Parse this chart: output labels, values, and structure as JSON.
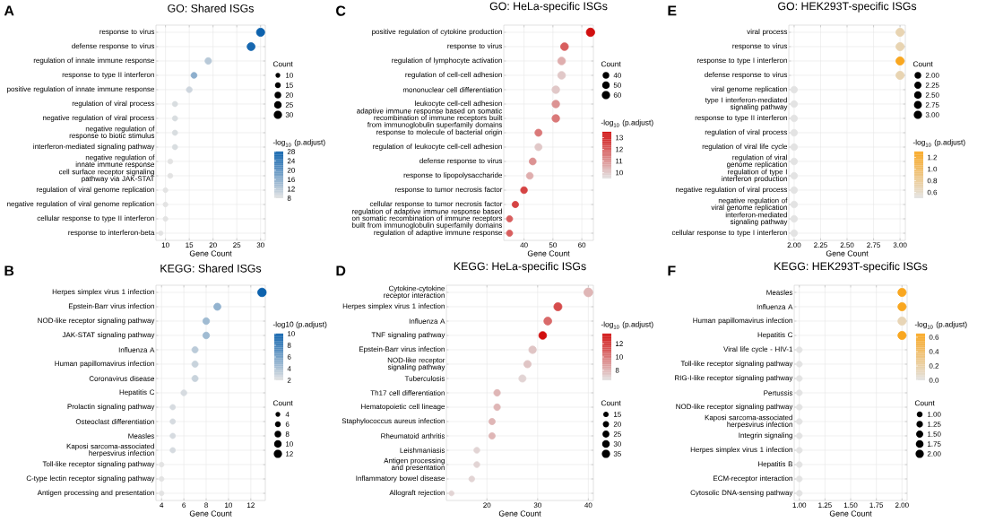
{
  "chart_data": [
    {
      "type": "bubble",
      "orientation": "horizontal",
      "title": "GO: Shared ISGs",
      "xlabel": "Gene Count",
      "legend_title": "Count",
      "clabel": "-log$_{10}$ (p.adjust)",
      "annotations": [
        "A"
      ],
      "grid": true,
      "categories": [
        "response to virus",
        "defense response to virus",
        "regulation of innate immune response",
        "response to type II interferon",
        "positive regulation of innate immune response",
        "regulation of viral process",
        "negative regulation of viral process",
        "negative regulation of response to biotic stimulus",
        "interferon-mediated signaling pathway",
        "negative regulation of innate immune response",
        "cell surface receptor signaling pathway via JAK-STAT",
        "regulation of viral genome replication",
        "negative regulation of viral genome replication",
        "cellular response to type II interferon",
        "response to interferon-beta"
      ],
      "series": [
        {
          "values": [
            30,
            28,
            19,
            16,
            15,
            12,
            12,
            12,
            12,
            11,
            11,
            10,
            10,
            10,
            9
          ],
          "sizes": [
            30,
            28,
            19,
            16,
            15,
            12,
            12,
            12,
            12,
            11,
            11,
            10,
            10,
            10,
            9
          ],
          "cvalues": [
            28,
            27,
            12,
            16,
            10,
            9,
            9,
            9,
            9,
            8,
            8,
            8,
            8,
            8,
            8
          ]
        }
      ],
      "xlim": [
        8,
        31
      ],
      "xticks": [
        10,
        15,
        20,
        25,
        30
      ],
      "clim": [
        8,
        28
      ],
      "cticks": [
        8,
        12,
        16,
        20,
        24,
        28
      ],
      "size_legend": [
        10,
        15,
        20,
        25,
        30
      ]
    },
    {
      "type": "bubble",
      "orientation": "horizontal",
      "title": "KEGG: Shared ISGs",
      "xlabel": "Gene Count",
      "legend_title": "Count",
      "clabel": "-log10 (p.adjust)",
      "annotations": [
        "B"
      ],
      "grid": true,
      "categories": [
        "Herpes simplex virus 1 infection",
        "Epstein-Barr virus infection",
        "NOD-like receptor signaling pathway",
        "JAK-STAT signaling pathway",
        "Influenza A",
        "Human papillomavirus infection",
        "Coronavirus disease",
        "Hepatitis C",
        "Prolactin signaling pathway",
        "Osteoclast differentiation",
        "Measles",
        "Kaposi sarcoma-associated herpesvirus infection",
        "Toll-like receptor signaling pathway",
        "C-type lectin receptor signaling pathway",
        "Antigen processing and presentation"
      ],
      "series": [
        {
          "values": [
            13,
            9,
            8,
            8,
            7,
            7,
            7,
            6,
            5,
            5,
            5,
            5,
            4,
            4,
            4
          ],
          "sizes": [
            13,
            9,
            8,
            8,
            7,
            7,
            7,
            6,
            5,
            5,
            5,
            5,
            4,
            4,
            4
          ],
          "cvalues": [
            10,
            5,
            4.5,
            4.5,
            3.5,
            3,
            3,
            2.5,
            2.5,
            2.5,
            2.5,
            2.5,
            2,
            2,
            2
          ]
        }
      ],
      "xlim": [
        3.5,
        13.3
      ],
      "xticks": [
        4,
        6,
        8,
        10,
        12
      ],
      "clim": [
        2,
        10
      ],
      "cticks": [
        2,
        4,
        6,
        8,
        10
      ],
      "size_legend": [
        4,
        6,
        8,
        10,
        12
      ]
    },
    {
      "type": "bubble",
      "orientation": "horizontal",
      "title": "GO: HeLa-specific ISGs",
      "xlabel": "Gene Count",
      "legend_title": "Count",
      "clabel": "-log$_{10}$ (p.adjust)",
      "annotations": [
        "C"
      ],
      "grid": true,
      "categories": [
        "positive regulation of cytokine production",
        "response to virus",
        "regulation of lymphocyte activation",
        "regulation of cell-cell adhesion",
        "mononuclear cell differentiation",
        "leukocyte cell-cell adhesion",
        "adaptive immune response based on somatic recombination of immune receptors built from immunoglobulin superfamily domains",
        "response to molecule of bacterial origin",
        "regulation of leukocyte cell-cell adhesion",
        "defense response to virus",
        "response to lipopolysaccharide",
        "response to tumor necrosis factor",
        "cellular response to tumor necrosis factor",
        "regulation of adaptive immune response based on somatic recombination of immune receptors built from immunoglobulin superfamily domains",
        "regulation of adaptive immune response"
      ],
      "series": [
        {
          "values": [
            63,
            54,
            53,
            53,
            51,
            51,
            51,
            45,
            45,
            43,
            42,
            40,
            37,
            35,
            35
          ],
          "sizes": [
            63,
            54,
            53,
            53,
            51,
            51,
            51,
            45,
            45,
            43,
            42,
            40,
            37,
            35,
            35
          ],
          "cvalues": [
            13.5,
            12,
            10.5,
            10,
            10,
            11,
            11.5,
            11.5,
            10,
            11,
            10.5,
            12.5,
            12.5,
            12,
            12
          ]
        }
      ],
      "xlim": [
        33,
        64
      ],
      "xticks": [
        40,
        50,
        60
      ],
      "clim": [
        9.5,
        13.5
      ],
      "cticks": [
        10,
        11,
        12,
        13
      ],
      "size_legend": [
        40,
        50,
        60
      ]
    },
    {
      "type": "bubble",
      "orientation": "horizontal",
      "title": "KEGG: HeLa-specific ISGs",
      "xlabel": "Gene Count",
      "legend_title": "Count",
      "clabel": "-log$_{10}$ (p.adjust)",
      "annotations": [
        "D"
      ],
      "grid": true,
      "categories": [
        "Cytokine-cytokine receptor interaction",
        "Herpes simplex virus 1 infection",
        "Influenza A",
        "TNF signaling pathway",
        "Epstein-Barr virus infection",
        "NOD-like receptor signaling pathway",
        "Tuberculosis",
        "Th17 cell differentiation",
        "Hematopoietic cell lineage",
        "Staphylococcus aureus infection",
        "Rheumatoid arthritis",
        "Leishmaniasis",
        "Antigen processing and presentation",
        "Inflammatory bowel disease",
        "Allograft rejection"
      ],
      "series": [
        {
          "values": [
            40,
            34,
            32,
            31,
            29,
            28,
            27,
            22,
            22,
            21,
            21,
            18,
            18,
            17,
            13
          ],
          "sizes": [
            40,
            34,
            32,
            31,
            29,
            28,
            27,
            22,
            22,
            21,
            21,
            18,
            18,
            17,
            13
          ],
          "cvalues": [
            8,
            11.5,
            10.5,
            13.5,
            7.5,
            7.5,
            7,
            8,
            8,
            8,
            8,
            7,
            7,
            7,
            7
          ]
        }
      ],
      "xlim": [
        12,
        41
      ],
      "xticks": [
        20,
        30,
        40
      ],
      "clim": [
        6.5,
        13.5
      ],
      "cticks": [
        8,
        10,
        12
      ],
      "size_legend": [
        15,
        20,
        25,
        30,
        35
      ]
    },
    {
      "type": "bubble",
      "orientation": "horizontal",
      "title": "GO: HEK293T-specific ISGs",
      "xlabel": "Gene Count",
      "legend_title": "Count",
      "clabel": "-log$_{10}$ (p.adjust)",
      "annotations": [
        "E"
      ],
      "grid": true,
      "categories": [
        "viral process",
        "response to virus",
        "response to type I interferon",
        "defense response to virus",
        "viral genome replication",
        "type I interferon-mediated signaling pathway",
        "response to type II interferon",
        "regulation of viral process",
        "regulation of viral life cycle",
        "regulation of viral genome replication",
        "regulation of type I interferon production",
        "negative regulation of viral process",
        "negative regulation of viral genome replication",
        "interferon-mediated signaling pathway",
        "cellular response to type I interferon"
      ],
      "series": [
        {
          "values": [
            3,
            3,
            3,
            3,
            2,
            2,
            2,
            2,
            2,
            2,
            2,
            2,
            2,
            2,
            2
          ],
          "sizes": [
            3,
            3,
            3,
            3,
            2,
            2,
            2,
            2,
            2,
            2,
            2,
            2,
            2,
            2,
            2
          ],
          "cvalues": [
            0.7,
            0.7,
            1.3,
            0.7,
            0.5,
            0.5,
            0.5,
            0.5,
            0.5,
            0.5,
            0.5,
            0.5,
            0.5,
            0.5,
            0.5
          ]
        }
      ],
      "xlim": [
        1.95,
        3.05
      ],
      "xticks": [
        {
          "value": 2,
          "label": "2.00"
        },
        {
          "value": 2.25,
          "label": "2.25"
        },
        {
          "value": 2.5,
          "label": "2.50"
        },
        {
          "value": 2.75,
          "label": "2.75"
        },
        {
          "value": 3,
          "label": "3.00"
        }
      ],
      "clim": [
        0.5,
        1.3
      ],
      "cticks": [
        {
          "value": 0.6,
          "label": "0.6"
        },
        {
          "value": 0.8,
          "label": "0.8"
        },
        {
          "value": 1.0,
          "label": "1.0"
        },
        {
          "value": 1.2,
          "label": "1.2"
        }
      ],
      "size_legend": [
        {
          "value": 2,
          "label": "2.00"
        },
        {
          "value": 2.25,
          "label": "2.25"
        },
        {
          "value": 2.5,
          "label": "2.50"
        },
        {
          "value": 2.75,
          "label": "2.75"
        },
        {
          "value": 3,
          "label": "3.00"
        }
      ]
    },
    {
      "type": "bubble",
      "orientation": "horizontal",
      "title": "KEGG: HEK293T-specific ISGs",
      "xlabel": "Gene Count",
      "legend_title": "Count",
      "clabel": "-log$_{10}$ (p.adjust)",
      "annotations": [
        "F"
      ],
      "grid": true,
      "categories": [
        "Measles",
        "Influenza A",
        "Human papillomavirus infection",
        "Hepatitis C",
        "Viral life cycle - HIV-1",
        "Toll-like receptor signaling pathway",
        "RIG-I-like receptor signaling pathway",
        "Pertussis",
        "NOD-like receptor signaling pathway",
        "Kaposi sarcoma-associated herpesvirus infection",
        "Integrin signaling",
        "Herpes simplex virus 1 infection",
        "Hepatitis B",
        "ECM-receptor interaction",
        "Cytosolic DNA-sensing pathway"
      ],
      "series": [
        {
          "values": [
            2,
            2,
            2,
            2,
            1,
            1,
            1,
            1,
            1,
            1,
            1,
            1,
            1,
            1,
            1
          ],
          "sizes": [
            2,
            2,
            2,
            2,
            1,
            1,
            1,
            1,
            1,
            1,
            1,
            1,
            1,
            1,
            1
          ],
          "cvalues": [
            0.65,
            0.65,
            0.15,
            0.65,
            0,
            0,
            0,
            0,
            0,
            0,
            0,
            0,
            0,
            0,
            0
          ]
        }
      ],
      "xlim": [
        0.95,
        2.05
      ],
      "xticks": [
        {
          "value": 1,
          "label": "1.00"
        },
        {
          "value": 1.25,
          "label": "1.25"
        },
        {
          "value": 1.5,
          "label": "1.50"
        },
        {
          "value": 1.75,
          "label": "1.75"
        },
        {
          "value": 2,
          "label": "2.00"
        }
      ],
      "clim": [
        0,
        0.65
      ],
      "cticks": [
        {
          "value": 0,
          "label": "0.0"
        },
        {
          "value": 0.2,
          "label": "0.2"
        },
        {
          "value": 0.4,
          "label": "0.4"
        },
        {
          "value": 0.6,
          "label": "0.6"
        }
      ],
      "size_legend": [
        {
          "value": 1,
          "label": "1.00"
        },
        {
          "value": 1.25,
          "label": "1.25"
        },
        {
          "value": 1.5,
          "label": "1.50"
        },
        {
          "value": 1.75,
          "label": "1.75"
        },
        {
          "value": 2,
          "label": "2.00"
        }
      ]
    }
  ]
}
